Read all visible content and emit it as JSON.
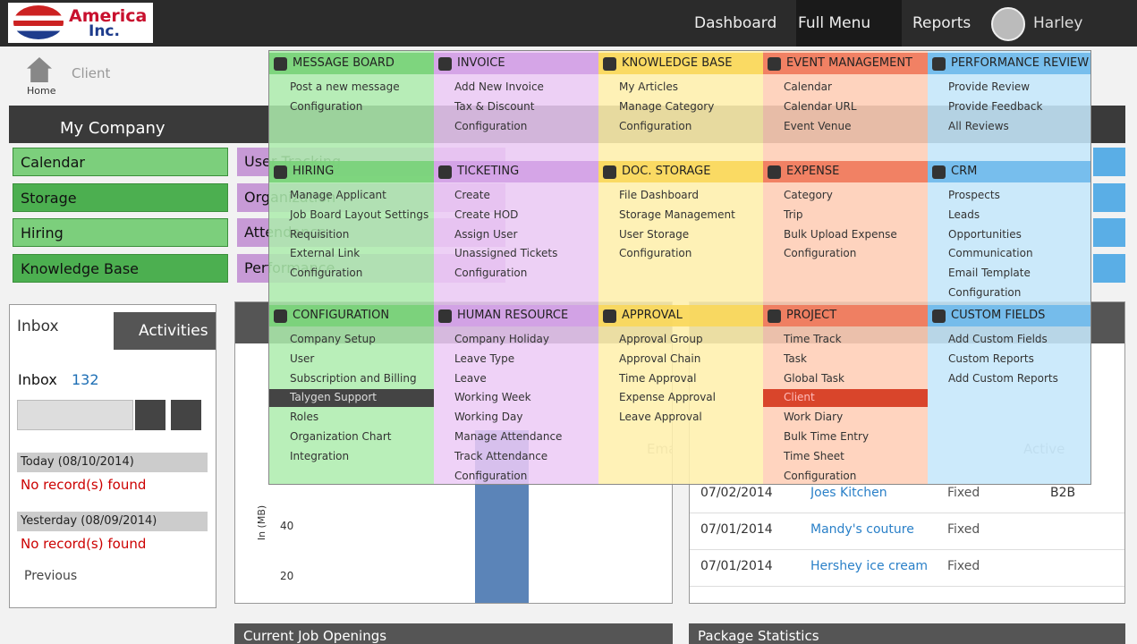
{
  "header": {
    "logo_line1": "America",
    "logo_line2": "Inc.",
    "nav": [
      "Dashboard",
      "Full Menu",
      "Reports"
    ],
    "user": "Harley"
  },
  "breadcrumb": {
    "home": "Home",
    "current": "Client"
  },
  "company": {
    "title": "My Company",
    "green_items": [
      "Calendar",
      "Storage",
      "Hiring",
      "Knowledge Base"
    ],
    "purple_items": [
      "User Tracking",
      "Organization",
      "Attendance",
      "Performance"
    ]
  },
  "inbox": {
    "tabs": [
      "Inbox",
      "Activities"
    ],
    "label": "Inbox",
    "count": "132",
    "groups": [
      {
        "date": "Today (08/10/2014)",
        "message": "No record(s) found"
      },
      {
        "date": "Yesterday (08/09/2014)",
        "message": "No record(s) found"
      }
    ],
    "previous": "Previous"
  },
  "chart_panel": {
    "axis_label": "In (MB)",
    "ticks": [
      "40",
      "20"
    ]
  },
  "client_table": {
    "headers": [
      "Email",
      "Active"
    ],
    "rows": [
      [
        "07/02/2014",
        "Joes Kitchen",
        "Fixed",
        "B2B"
      ],
      [
        "07/01/2014",
        "Mandy's couture",
        "Fixed",
        ""
      ],
      [
        "07/01/2014",
        "Hershey ice cream",
        "Fixed",
        ""
      ]
    ]
  },
  "bottom_panels": [
    "Current Job Openings",
    "Package Statistics"
  ],
  "menu": {
    "sections": [
      {
        "title": "MESSAGE BOARD",
        "items": [
          "Post a new message",
          "Configuration"
        ]
      },
      {
        "title": "INVOICE",
        "items": [
          "Add New Invoice",
          "Tax & Discount",
          "Configuration"
        ]
      },
      {
        "title": "KNOWLEDGE BASE",
        "items": [
          "My Articles",
          "Manage Category",
          "Configuration"
        ]
      },
      {
        "title": "EVENT MANAGEMENT",
        "items": [
          "Calendar",
          "Calendar URL",
          "Event Venue"
        ]
      },
      {
        "title": "PERFORMANCE REVIEW",
        "items": [
          "Provide Review",
          "Provide Feedback",
          "All Reviews"
        ]
      },
      {
        "title": "HIRING",
        "items": [
          "Manage Applicant",
          "Job Board Layout Settings",
          "Requisition",
          "External Link",
          "Configuration"
        ]
      },
      {
        "title": "TICKETING",
        "items": [
          "Create",
          "Create HOD",
          "Assign User",
          "Unassigned Tickets",
          "Configuration"
        ]
      },
      {
        "title": "DOC. STORAGE",
        "items": [
          "File Dashboard",
          "Storage Management",
          "User Storage",
          "Configuration"
        ]
      },
      {
        "title": "EXPENSE",
        "items": [
          "Category",
          "Trip",
          "Bulk Upload Expense",
          "Configuration"
        ]
      },
      {
        "title": "CRM",
        "items": [
          "Prospects",
          "Leads",
          "Opportunities",
          "Communication",
          "Email Template",
          "Configuration"
        ]
      },
      {
        "title": "CONFIGURATION",
        "items": [
          "Company Setup",
          "User",
          "Subscription and Billing",
          "Talygen Support",
          "Roles",
          "Organization Chart",
          "Integration"
        ]
      },
      {
        "title": "HUMAN RESOURCE",
        "items": [
          "Company Holiday",
          "Leave Type",
          "Leave",
          "Working Week",
          "Working Day",
          "Manage Attendance",
          "Track Attendance",
          "Configuration"
        ]
      },
      {
        "title": "APPROVAL",
        "items": [
          "Approval Group",
          "Approval Chain",
          "Time Approval",
          "Expense Approval",
          "Leave Approval"
        ]
      },
      {
        "title": "PROJECT",
        "items": [
          "Time Track",
          "Task",
          "Global Task",
          "Client",
          "Work Diary",
          "Bulk Time Entry",
          "Time Sheet",
          "Configuration"
        ]
      },
      {
        "title": "CUSTOM FIELDS",
        "items": [
          "Add Custom Fields",
          "Custom Reports",
          "Add Custom Reports"
        ]
      }
    ]
  }
}
